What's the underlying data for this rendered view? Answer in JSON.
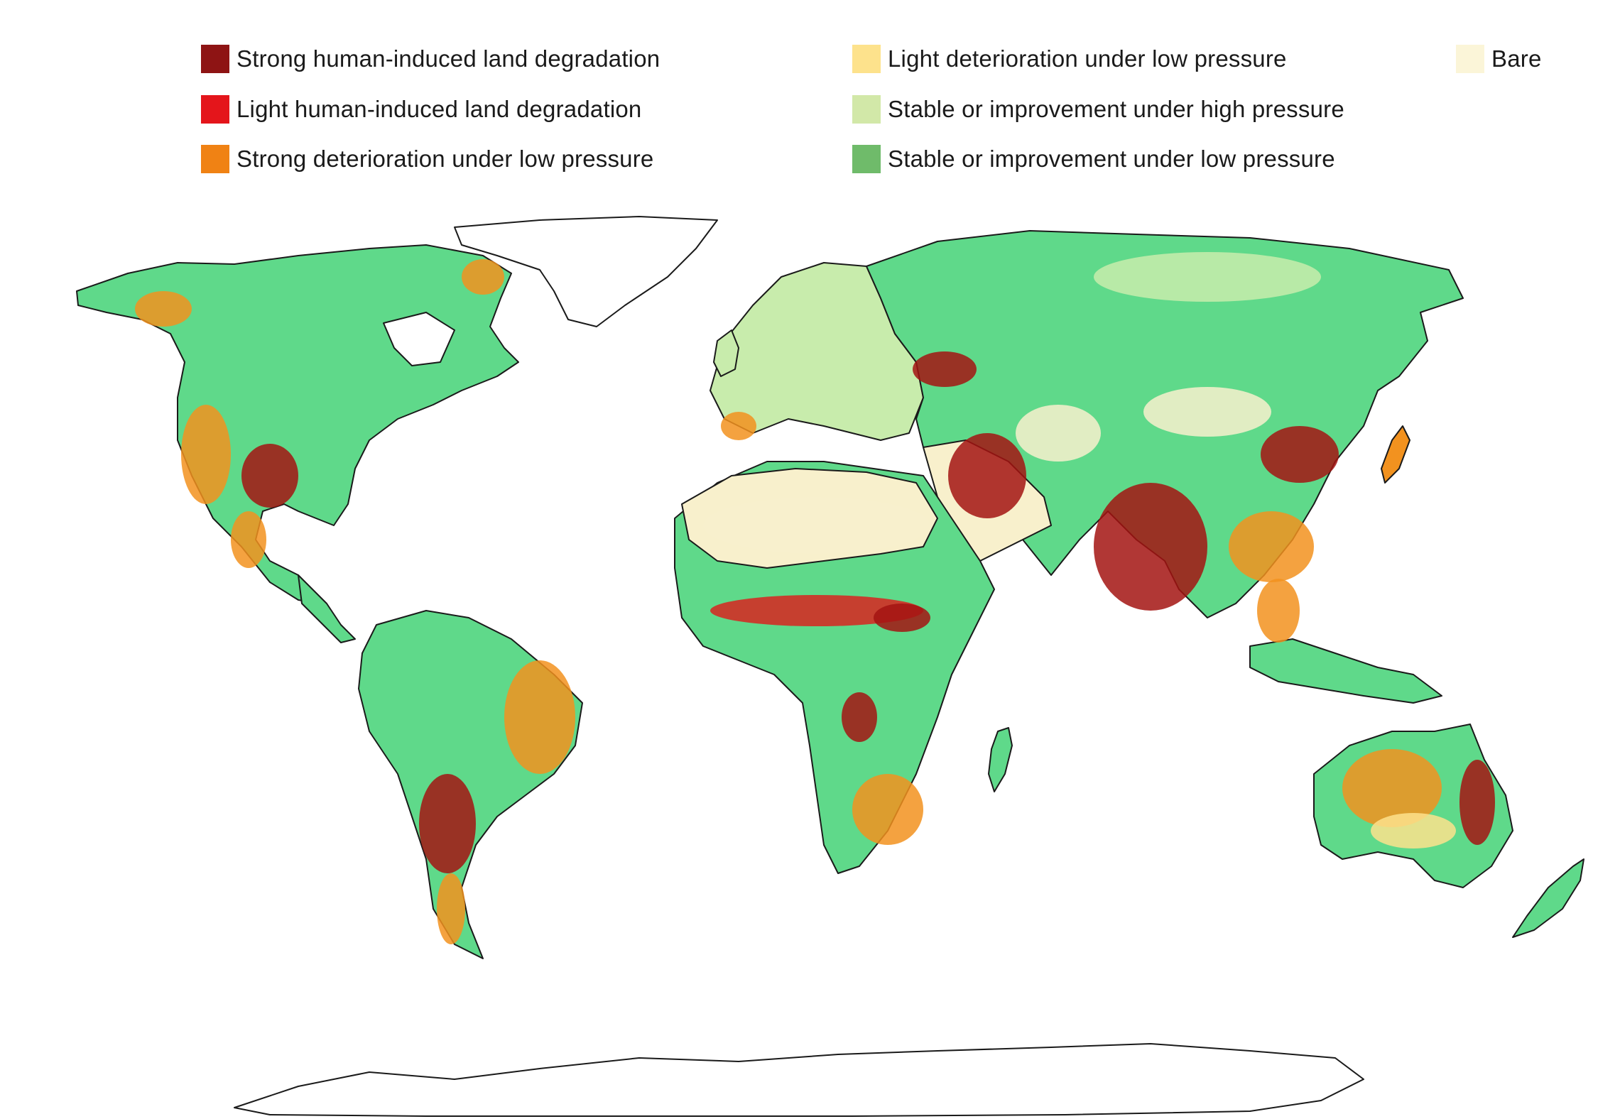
{
  "legend": {
    "items": [
      {
        "label": "Strong human-induced land degradation",
        "color": "#8e1414"
      },
      {
        "label": "Light human-induced land degradation",
        "color": "#e4151b"
      },
      {
        "label": "Strong deterioration under low pressure",
        "color": "#f08214"
      },
      {
        "label": "Light deterioration under low pressure",
        "color": "#fde28c"
      },
      {
        "label": "Stable or improvement under high pressure",
        "color": "#d2e8a8"
      },
      {
        "label": "Stable or improvement under low pressure",
        "color": "#6fbb6a"
      },
      {
        "label": "Bare",
        "color": "#fbf5d8"
      }
    ]
  },
  "map": {
    "colors": {
      "land_green": "#5fd98a",
      "light_green": "#c8ecac",
      "orange": "#f2921f",
      "dark_red": "#a31412",
      "red": "#d8231e",
      "bare": "#f8f0cc",
      "ice": "#ffffff",
      "border": "#1a1a1a"
    }
  }
}
